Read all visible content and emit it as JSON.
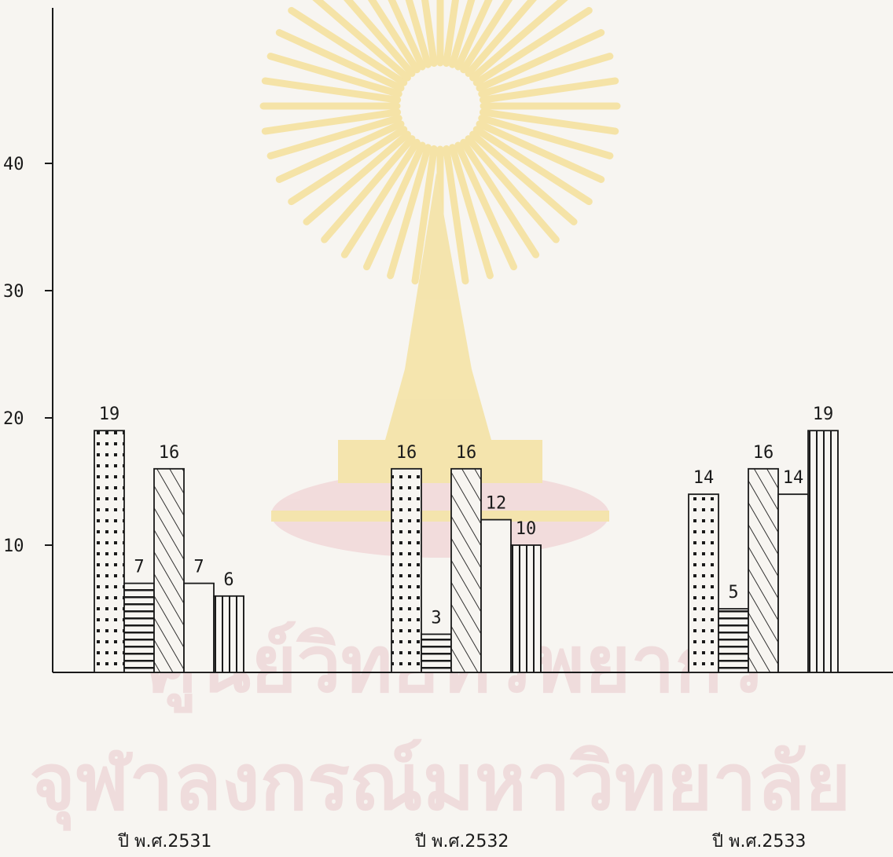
{
  "chart_data": {
    "type": "bar",
    "title": "",
    "xlabel": "",
    "ylabel": "",
    "ylim": [
      0,
      50
    ],
    "yticks": [
      10,
      20,
      30,
      40
    ],
    "grid": false,
    "legend": "none",
    "categories": [
      "ปี พ.ศ.2531",
      "ปี พ.ศ.2532",
      "ปี พ.ศ.2533"
    ],
    "series": [
      {
        "pattern": "dots",
        "values": [
          19,
          16,
          14
        ],
        "labels": [
          "19",
          "16",
          "14"
        ]
      },
      {
        "pattern": "horizontal-lines",
        "values": [
          7,
          3,
          5
        ],
        "labels": [
          "7",
          "3",
          "5"
        ]
      },
      {
        "pattern": "diagonal-lines",
        "values": [
          16,
          16,
          16
        ],
        "labels": [
          "16",
          "16",
          "16"
        ]
      },
      {
        "pattern": "blank",
        "values": [
          7,
          12,
          14
        ],
        "labels": [
          "7",
          "12",
          "14"
        ]
      },
      {
        "pattern": "vertical-lines",
        "values": [
          6,
          10,
          19
        ],
        "labels": [
          "6",
          "10",
          "19"
        ]
      }
    ],
    "colors": {
      "ink": "#1a1a1a",
      "paper": "#f7f5f1"
    }
  },
  "watermark": {
    "line1": "ศูนย์วิทยทรัพยากร",
    "line2": "จุฬาลงกรณ์มหาวิทยาลัย",
    "emblem_color": "#f3d97a",
    "text_color": "#f0dede"
  }
}
